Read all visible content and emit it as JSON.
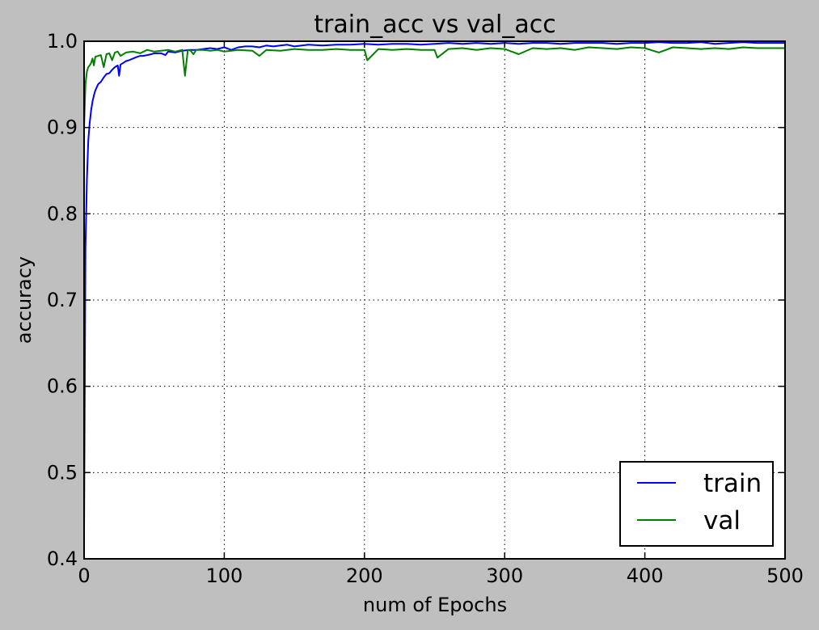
{
  "colors": {
    "figure_background": "#bfbfbf",
    "plot_background": "#ffffff",
    "train": "#0000ff",
    "val": "#008000",
    "grid": "#000000"
  },
  "chart_data": {
    "type": "line",
    "title": "train_acc vs val_acc",
    "xlabel": "num of Epochs",
    "ylabel": "accuracy",
    "xlim": [
      0,
      500
    ],
    "ylim": [
      0.4,
      1.0
    ],
    "xticks": [
      0,
      100,
      200,
      300,
      400,
      500
    ],
    "xtick_labels": [
      "0",
      "100",
      "200",
      "300",
      "400",
      "500"
    ],
    "yticks": [
      0.4,
      0.5,
      0.6,
      0.7,
      0.8,
      0.9,
      1.0
    ],
    "ytick_labels": [
      "0.4",
      "0.5",
      "0.6",
      "0.7",
      "0.8",
      "0.9",
      "1.0"
    ],
    "grid": true,
    "grid_style": "dotted",
    "legend_position": "lower-right",
    "series": [
      {
        "name": "train",
        "color": "#0000ff",
        "x": [
          0,
          1,
          2,
          3,
          4,
          5,
          6,
          7,
          8,
          10,
          12,
          14,
          16,
          18,
          20,
          22,
          24,
          25,
          26,
          28,
          30,
          32,
          35,
          38,
          40,
          42,
          45,
          48,
          50,
          55,
          58,
          60,
          65,
          70,
          75,
          80,
          85,
          90,
          95,
          100,
          105,
          110,
          115,
          120,
          125,
          130,
          135,
          140,
          145,
          150,
          160,
          170,
          180,
          190,
          200,
          210,
          220,
          230,
          240,
          250,
          260,
          270,
          280,
          290,
          300,
          310,
          320,
          330,
          340,
          350,
          360,
          370,
          380,
          390,
          400,
          410,
          420,
          430,
          440,
          450,
          460,
          470,
          480,
          490,
          500
        ],
        "y": [
          0.43,
          0.76,
          0.84,
          0.885,
          0.905,
          0.92,
          0.93,
          0.937,
          0.943,
          0.95,
          0.953,
          0.958,
          0.962,
          0.963,
          0.967,
          0.97,
          0.972,
          0.96,
          0.973,
          0.975,
          0.977,
          0.978,
          0.98,
          0.982,
          0.983,
          0.983,
          0.984,
          0.985,
          0.986,
          0.986,
          0.984,
          0.988,
          0.987,
          0.989,
          0.99,
          0.99,
          0.991,
          0.992,
          0.991,
          0.993,
          0.99,
          0.993,
          0.994,
          0.994,
          0.993,
          0.995,
          0.994,
          0.995,
          0.996,
          0.994,
          0.996,
          0.995,
          0.996,
          0.996,
          0.997,
          0.996,
          0.997,
          0.997,
          0.996,
          0.997,
          0.998,
          0.997,
          0.998,
          0.997,
          0.998,
          0.997,
          0.998,
          0.998,
          0.997,
          0.998,
          0.998,
          0.998,
          0.997,
          0.998,
          0.998,
          0.999,
          0.998,
          0.998,
          0.999,
          0.997,
          0.998,
          0.999,
          0.998,
          0.998,
          0.998
        ]
      },
      {
        "name": "val",
        "color": "#008000",
        "x": [
          0,
          1,
          2,
          3,
          4,
          5,
          6,
          7,
          8,
          10,
          12,
          14,
          16,
          18,
          20,
          22,
          24,
          26,
          28,
          30,
          35,
          40,
          45,
          50,
          55,
          60,
          65,
          70,
          72,
          74,
          76,
          78,
          80,
          85,
          90,
          95,
          100,
          110,
          120,
          125,
          130,
          140,
          150,
          160,
          170,
          180,
          190,
          200,
          202,
          210,
          220,
          230,
          240,
          250,
          252,
          260,
          270,
          280,
          290,
          300,
          310,
          320,
          330,
          340,
          350,
          360,
          370,
          380,
          390,
          400,
          410,
          420,
          430,
          440,
          450,
          460,
          470,
          480,
          490,
          500
        ],
        "y": [
          0.9,
          0.95,
          0.965,
          0.97,
          0.972,
          0.975,
          0.98,
          0.972,
          0.982,
          0.983,
          0.984,
          0.97,
          0.985,
          0.986,
          0.978,
          0.987,
          0.988,
          0.983,
          0.985,
          0.987,
          0.988,
          0.986,
          0.99,
          0.988,
          0.989,
          0.99,
          0.988,
          0.99,
          0.96,
          0.99,
          0.989,
          0.985,
          0.99,
          0.99,
          0.989,
          0.99,
          0.988,
          0.99,
          0.989,
          0.983,
          0.99,
          0.989,
          0.991,
          0.99,
          0.99,
          0.991,
          0.99,
          0.99,
          0.978,
          0.991,
          0.99,
          0.991,
          0.99,
          0.99,
          0.981,
          0.991,
          0.992,
          0.99,
          0.992,
          0.991,
          0.985,
          0.992,
          0.991,
          0.992,
          0.99,
          0.993,
          0.992,
          0.991,
          0.993,
          0.992,
          0.987,
          0.993,
          0.992,
          0.991,
          0.992,
          0.991,
          0.993,
          0.992,
          0.992,
          0.992
        ]
      }
    ]
  }
}
